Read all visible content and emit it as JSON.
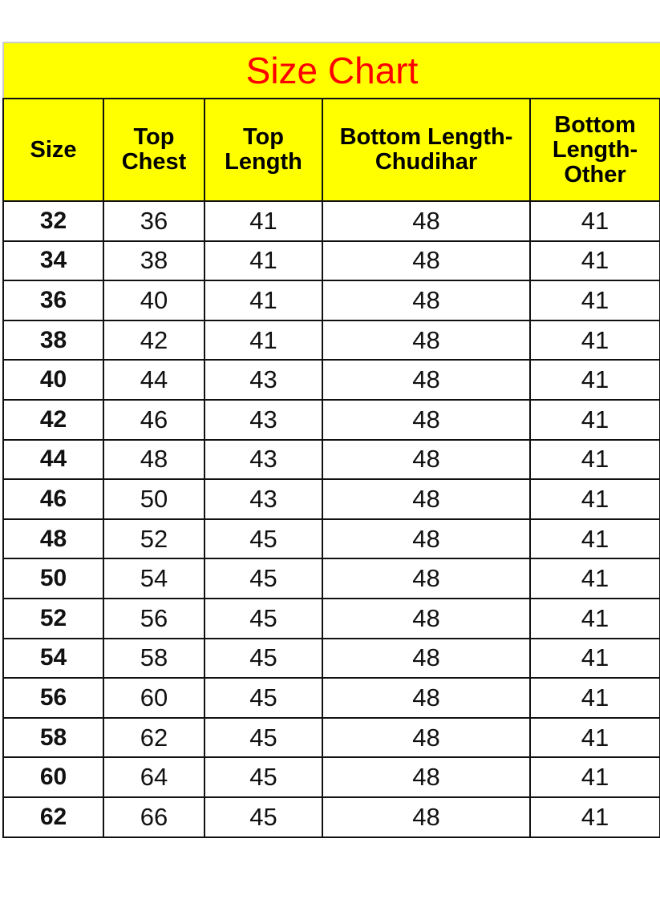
{
  "title": "Size Chart",
  "colors": {
    "header_bg": "#ffff00",
    "title_text": "#ff0000",
    "grid": "#111111"
  },
  "columns": [
    "Size",
    "Top Chest",
    "Top Length",
    "Bottom Length-Chudihar",
    "Bottom Length-Other"
  ],
  "rows": [
    [
      "32",
      "36",
      "41",
      "48",
      "41"
    ],
    [
      "34",
      "38",
      "41",
      "48",
      "41"
    ],
    [
      "36",
      "40",
      "41",
      "48",
      "41"
    ],
    [
      "38",
      "42",
      "41",
      "48",
      "41"
    ],
    [
      "40",
      "44",
      "43",
      "48",
      "41"
    ],
    [
      "42",
      "46",
      "43",
      "48",
      "41"
    ],
    [
      "44",
      "48",
      "43",
      "48",
      "41"
    ],
    [
      "46",
      "50",
      "43",
      "48",
      "41"
    ],
    [
      "48",
      "52",
      "45",
      "48",
      "41"
    ],
    [
      "50",
      "54",
      "45",
      "48",
      "41"
    ],
    [
      "52",
      "56",
      "45",
      "48",
      "41"
    ],
    [
      "54",
      "58",
      "45",
      "48",
      "41"
    ],
    [
      "56",
      "60",
      "45",
      "48",
      "41"
    ],
    [
      "58",
      "62",
      "45",
      "48",
      "41"
    ],
    [
      "60",
      "64",
      "45",
      "48",
      "41"
    ],
    [
      "62",
      "66",
      "45",
      "48",
      "41"
    ]
  ]
}
